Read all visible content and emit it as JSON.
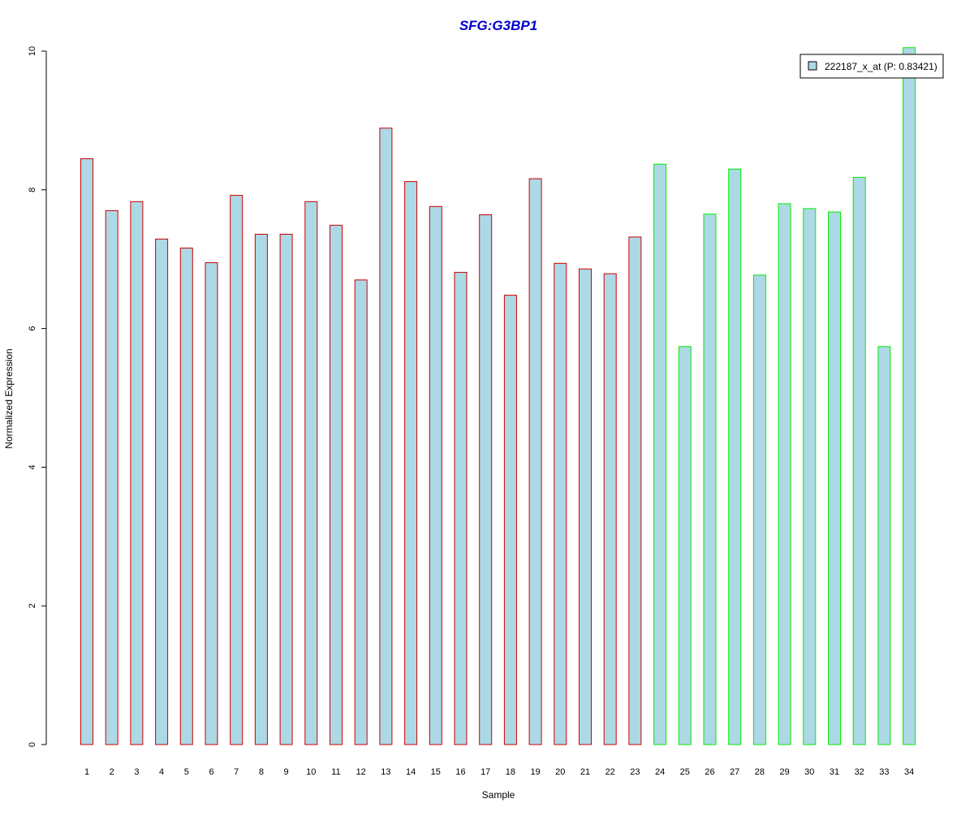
{
  "colors": {
    "title": "#0000CC",
    "bar_fill": "#ADD8E6",
    "group1_border": "#CC0000",
    "group2_border": "#00EE00",
    "axis": "#000000"
  },
  "chart_data": {
    "type": "bar",
    "title": "SFG:G3BP1",
    "xlabel": "Sample",
    "ylabel": "Normalized Expression",
    "ylim": [
      0,
      10
    ],
    "yticks": [
      "0",
      "2",
      "4",
      "6",
      "8",
      "10"
    ],
    "grid": false,
    "legend_position": "top-right",
    "categories": [
      "1",
      "2",
      "3",
      "4",
      "5",
      "6",
      "7",
      "8",
      "9",
      "10",
      "11",
      "12",
      "13",
      "14",
      "15",
      "16",
      "17",
      "18",
      "19",
      "20",
      "21",
      "22",
      "23",
      "24",
      "25",
      "26",
      "27",
      "28",
      "29",
      "30",
      "31",
      "32",
      "33",
      "34"
    ],
    "series": [
      {
        "name": "222187_x_at (P: 0.83421)",
        "values": [
          8.45,
          7.7,
          7.83,
          7.29,
          7.16,
          6.95,
          7.92,
          7.36,
          7.36,
          7.83,
          7.49,
          6.7,
          8.89,
          8.12,
          7.76,
          6.81,
          7.64,
          6.48,
          8.16,
          6.94,
          6.86,
          6.79,
          7.32,
          8.37,
          5.74,
          7.65,
          8.3,
          6.77,
          7.8,
          7.73,
          7.68,
          8.18,
          5.74,
          10.05
        ],
        "group": [
          1,
          1,
          1,
          1,
          1,
          1,
          1,
          1,
          1,
          1,
          1,
          1,
          1,
          1,
          1,
          1,
          1,
          1,
          1,
          1,
          1,
          1,
          1,
          2,
          2,
          2,
          2,
          2,
          2,
          2,
          2,
          2,
          2,
          2
        ]
      }
    ]
  }
}
